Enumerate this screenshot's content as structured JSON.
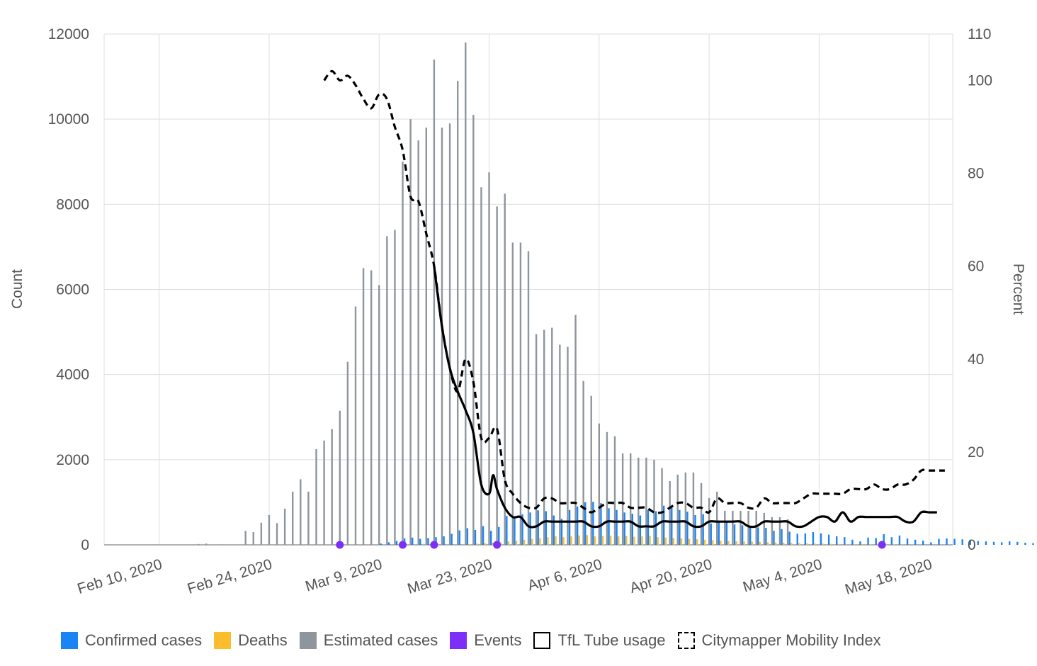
{
  "chart_data": {
    "type": "bar",
    "x_axis": {
      "type": "date",
      "range": [
        "2020-02-03",
        "2020-05-21"
      ],
      "tick_labels": [
        "Feb 10, 2020",
        "Feb 24, 2020",
        "Mar 9, 2020",
        "Mar 23, 2020",
        "Apr 6, 2020",
        "Apr 20, 2020",
        "May 4, 2020",
        "May 18, 2020"
      ],
      "tick_dates": [
        "2020-02-10",
        "2020-02-24",
        "2020-03-09",
        "2020-03-23",
        "2020-04-06",
        "2020-04-20",
        "2020-05-04",
        "2020-05-18"
      ]
    },
    "y_axis_left": {
      "label": "Count",
      "range": [
        0,
        12000
      ],
      "ticks": [
        0,
        2000,
        4000,
        6000,
        8000,
        10000,
        12000
      ]
    },
    "y_axis_right": {
      "label": "Percent",
      "range": [
        0,
        110
      ],
      "ticks": [
        0,
        20,
        40,
        60,
        80,
        100,
        110
      ]
    },
    "grid": true,
    "legend_position": "bottom",
    "series": [
      {
        "name": "Confirmed cases",
        "type": "bar",
        "axis": "left",
        "color": "#1a84f5",
        "start_date": "2020-03-09",
        "values": [
          30,
          60,
          90,
          150,
          170,
          140,
          160,
          180,
          200,
          260,
          340,
          390,
          350,
          440,
          330,
          420,
          680,
          650,
          720,
          760,
          810,
          790,
          690,
          610,
          820,
          900,
          1000,
          1010,
          980,
          860,
          820,
          760,
          730,
          690,
          820,
          790,
          920,
          880,
          820,
          780,
          700,
          720,
          500,
          570,
          540,
          480,
          460,
          430,
          410,
          400,
          330,
          370,
          310,
          260,
          270,
          300,
          270,
          240,
          200,
          180,
          120,
          80,
          170,
          160,
          250,
          180,
          220,
          150,
          120,
          100,
          60,
          140,
          150,
          140,
          130,
          120,
          90,
          80,
          70,
          60,
          80,
          70,
          50,
          40,
          35,
          30,
          30,
          25
        ]
      },
      {
        "name": "Deaths",
        "type": "bar",
        "axis": "left",
        "color": "#fbbd2c",
        "start_date": "2020-03-20",
        "values": [
          20,
          30,
          40,
          50,
          60,
          80,
          100,
          120,
          140,
          160,
          180,
          200,
          180,
          200,
          220,
          230,
          200,
          210,
          220,
          200,
          210,
          190,
          200,
          210,
          180,
          170,
          160,
          150,
          140,
          130,
          120,
          110,
          100,
          90,
          85,
          80,
          75,
          70,
          60,
          55,
          50,
          45,
          40,
          35,
          30,
          28,
          25,
          22,
          20,
          18,
          15,
          12,
          10,
          8,
          6,
          5
        ]
      },
      {
        "name": "Estimated cases",
        "type": "bar",
        "axis": "left",
        "color": "#8e959d",
        "start_date": "2020-02-09",
        "values": [
          0,
          0,
          0,
          0,
          0,
          0,
          20,
          30,
          0,
          10,
          0,
          0,
          330,
          300,
          520,
          700,
          510,
          850,
          1250,
          1540,
          1250,
          2250,
          2450,
          2720,
          3150,
          4300,
          5600,
          6500,
          6450,
          6100,
          7250,
          7400,
          9000,
          10000,
          9500,
          9800,
          11400,
          9800,
          9900,
          10900,
          11800,
          10100,
          8400,
          8750,
          7950,
          8250,
          7100,
          7100,
          6900,
          4950,
          5050,
          5100,
          4700,
          4650,
          5400,
          3850,
          3500,
          2850,
          2650,
          2550,
          2150,
          2150,
          2050,
          2050,
          2000,
          1800,
          1500,
          1650,
          1700,
          1700,
          1450,
          1100,
          1250,
          800,
          800,
          800,
          800,
          800,
          750,
          650,
          650,
          600,
          0,
          0,
          0,
          0,
          0,
          0,
          0,
          0,
          0,
          0,
          0,
          0,
          0,
          0,
          0,
          0,
          0,
          0
        ]
      },
      {
        "name": "Events",
        "type": "scatter",
        "axis": "left",
        "color": "#7b2ff7",
        "dates": [
          "2020-03-04",
          "2020-03-12",
          "2020-03-16",
          "2020-03-24",
          "2020-05-12"
        ],
        "values": [
          0,
          0,
          0,
          0,
          0
        ]
      },
      {
        "name": "TfL Tube usage",
        "type": "line",
        "axis": "right",
        "color": "#000000",
        "points": [
          [
            "2020-03-16",
            60
          ],
          [
            "2020-03-17",
            47
          ],
          [
            "2020-03-18",
            38
          ],
          [
            "2020-03-19",
            33
          ],
          [
            "2020-03-20",
            29
          ],
          [
            "2020-03-21",
            24
          ],
          [
            "2020-03-22",
            13
          ],
          [
            "2020-03-23",
            11
          ],
          [
            "2020-03-23 12:00",
            15
          ],
          [
            "2020-03-24",
            12
          ],
          [
            "2020-03-25",
            8
          ],
          [
            "2020-03-26",
            6
          ],
          [
            "2020-03-27",
            6
          ],
          [
            "2020-03-28",
            4
          ],
          [
            "2020-03-29",
            4
          ],
          [
            "2020-03-30",
            5
          ],
          [
            "2020-03-31",
            5
          ],
          [
            "2020-04-01",
            5
          ],
          [
            "2020-04-02",
            5
          ],
          [
            "2020-04-03",
            5
          ],
          [
            "2020-04-04",
            5
          ],
          [
            "2020-04-05",
            4
          ],
          [
            "2020-04-06",
            4
          ],
          [
            "2020-04-07",
            5
          ],
          [
            "2020-04-08",
            5
          ],
          [
            "2020-04-09",
            5
          ],
          [
            "2020-04-10",
            5
          ],
          [
            "2020-04-11",
            4
          ],
          [
            "2020-04-12",
            4
          ],
          [
            "2020-04-13",
            4
          ],
          [
            "2020-04-14",
            5
          ],
          [
            "2020-04-15",
            5
          ],
          [
            "2020-04-16",
            5
          ],
          [
            "2020-04-17",
            5
          ],
          [
            "2020-04-18",
            4
          ],
          [
            "2020-04-19",
            4
          ],
          [
            "2020-04-20",
            5
          ],
          [
            "2020-04-21",
            5
          ],
          [
            "2020-04-22",
            5
          ],
          [
            "2020-04-23",
            5
          ],
          [
            "2020-04-24",
            5
          ],
          [
            "2020-04-25",
            4
          ],
          [
            "2020-04-26",
            4
          ],
          [
            "2020-04-27",
            5
          ],
          [
            "2020-04-28",
            5
          ],
          [
            "2020-04-29",
            5
          ],
          [
            "2020-04-30",
            5
          ],
          [
            "2020-05-01",
            4
          ],
          [
            "2020-05-02",
            4
          ],
          [
            "2020-05-03",
            5
          ],
          [
            "2020-05-04",
            6
          ],
          [
            "2020-05-05",
            6
          ],
          [
            "2020-05-06",
            5
          ],
          [
            "2020-05-07",
            7
          ],
          [
            "2020-05-08",
            5
          ],
          [
            "2020-05-09",
            6
          ],
          [
            "2020-05-10",
            6
          ],
          [
            "2020-05-11",
            6
          ],
          [
            "2020-05-12",
            6
          ],
          [
            "2020-05-13",
            6
          ],
          [
            "2020-05-14",
            6
          ],
          [
            "2020-05-15",
            5
          ],
          [
            "2020-05-16",
            5
          ],
          [
            "2020-05-17",
            7
          ],
          [
            "2020-05-18",
            7
          ],
          [
            "2020-05-19",
            7
          ]
        ]
      },
      {
        "name": "Citymapper Mobility Index",
        "type": "line",
        "dashed": true,
        "axis": "right",
        "color": "#000000",
        "points": [
          [
            "2020-03-02",
            100
          ],
          [
            "2020-03-03",
            102
          ],
          [
            "2020-03-04",
            100
          ],
          [
            "2020-03-05",
            101
          ],
          [
            "2020-03-06",
            99
          ],
          [
            "2020-03-07",
            96
          ],
          [
            "2020-03-08",
            94
          ],
          [
            "2020-03-09",
            97
          ],
          [
            "2020-03-10",
            96
          ],
          [
            "2020-03-11",
            90
          ],
          [
            "2020-03-12",
            85
          ],
          [
            "2020-03-13",
            75
          ],
          [
            "2020-03-14",
            74
          ],
          [
            "2020-03-15",
            67
          ],
          [
            "2020-03-16",
            60
          ],
          [
            "2020-03-17",
            47
          ],
          [
            "2020-03-18",
            38
          ],
          [
            "2020-03-19",
            33
          ],
          [
            "2020-03-20",
            40
          ],
          [
            "2020-03-21",
            35
          ],
          [
            "2020-03-22",
            23
          ],
          [
            "2020-03-23",
            23
          ],
          [
            "2020-03-24",
            25
          ],
          [
            "2020-03-25",
            14
          ],
          [
            "2020-03-26",
            11
          ],
          [
            "2020-03-27",
            9
          ],
          [
            "2020-03-28",
            8
          ],
          [
            "2020-03-29",
            8
          ],
          [
            "2020-03-30",
            10
          ],
          [
            "2020-03-31",
            10
          ],
          [
            "2020-04-01",
            9
          ],
          [
            "2020-04-02",
            9
          ],
          [
            "2020-04-03",
            9
          ],
          [
            "2020-04-04",
            8
          ],
          [
            "2020-04-05",
            7
          ],
          [
            "2020-04-06",
            8
          ],
          [
            "2020-04-07",
            9
          ],
          [
            "2020-04-08",
            9
          ],
          [
            "2020-04-09",
            9
          ],
          [
            "2020-04-10",
            8
          ],
          [
            "2020-04-11",
            8
          ],
          [
            "2020-04-12",
            8
          ],
          [
            "2020-04-13",
            7
          ],
          [
            "2020-04-14",
            7
          ],
          [
            "2020-04-15",
            8
          ],
          [
            "2020-04-16",
            9
          ],
          [
            "2020-04-17",
            9
          ],
          [
            "2020-04-18",
            8
          ],
          [
            "2020-04-19",
            8
          ],
          [
            "2020-04-20",
            7
          ],
          [
            "2020-04-21",
            10
          ],
          [
            "2020-04-22",
            9
          ],
          [
            "2020-04-23",
            9
          ],
          [
            "2020-04-24",
            9
          ],
          [
            "2020-04-25",
            8
          ],
          [
            "2020-04-26",
            8
          ],
          [
            "2020-04-27",
            10
          ],
          [
            "2020-04-28",
            9
          ],
          [
            "2020-04-29",
            9
          ],
          [
            "2020-04-30",
            9
          ],
          [
            "2020-05-01",
            9
          ],
          [
            "2020-05-02",
            10
          ],
          [
            "2020-05-03",
            11
          ],
          [
            "2020-05-04",
            11
          ],
          [
            "2020-05-05",
            11
          ],
          [
            "2020-05-06",
            11
          ],
          [
            "2020-05-07",
            11
          ],
          [
            "2020-05-08",
            12
          ],
          [
            "2020-05-09",
            12
          ],
          [
            "2020-05-10",
            12
          ],
          [
            "2020-05-11",
            13
          ],
          [
            "2020-05-12",
            12
          ],
          [
            "2020-05-13",
            12
          ],
          [
            "2020-05-14",
            13
          ],
          [
            "2020-05-15",
            13
          ],
          [
            "2020-05-16",
            14
          ],
          [
            "2020-05-17",
            16
          ],
          [
            "2020-05-18",
            16
          ],
          [
            "2020-05-19",
            16
          ],
          [
            "2020-05-20",
            16
          ]
        ]
      }
    ]
  },
  "legend": [
    {
      "label": "Confirmed cases",
      "icon": "square-filled",
      "color": "#1a84f5"
    },
    {
      "label": "Deaths",
      "icon": "square-filled",
      "color": "#fbbd2c"
    },
    {
      "label": "Estimated cases",
      "icon": "square-filled",
      "color": "#8e959d"
    },
    {
      "label": "Events",
      "icon": "square-filled",
      "color": "#7b2ff7"
    },
    {
      "label": "TfL Tube usage",
      "icon": "square-outline",
      "color": "#000000"
    },
    {
      "label": "Citymapper Mobility Index",
      "icon": "square-dashed",
      "color": "#000000"
    }
  ]
}
